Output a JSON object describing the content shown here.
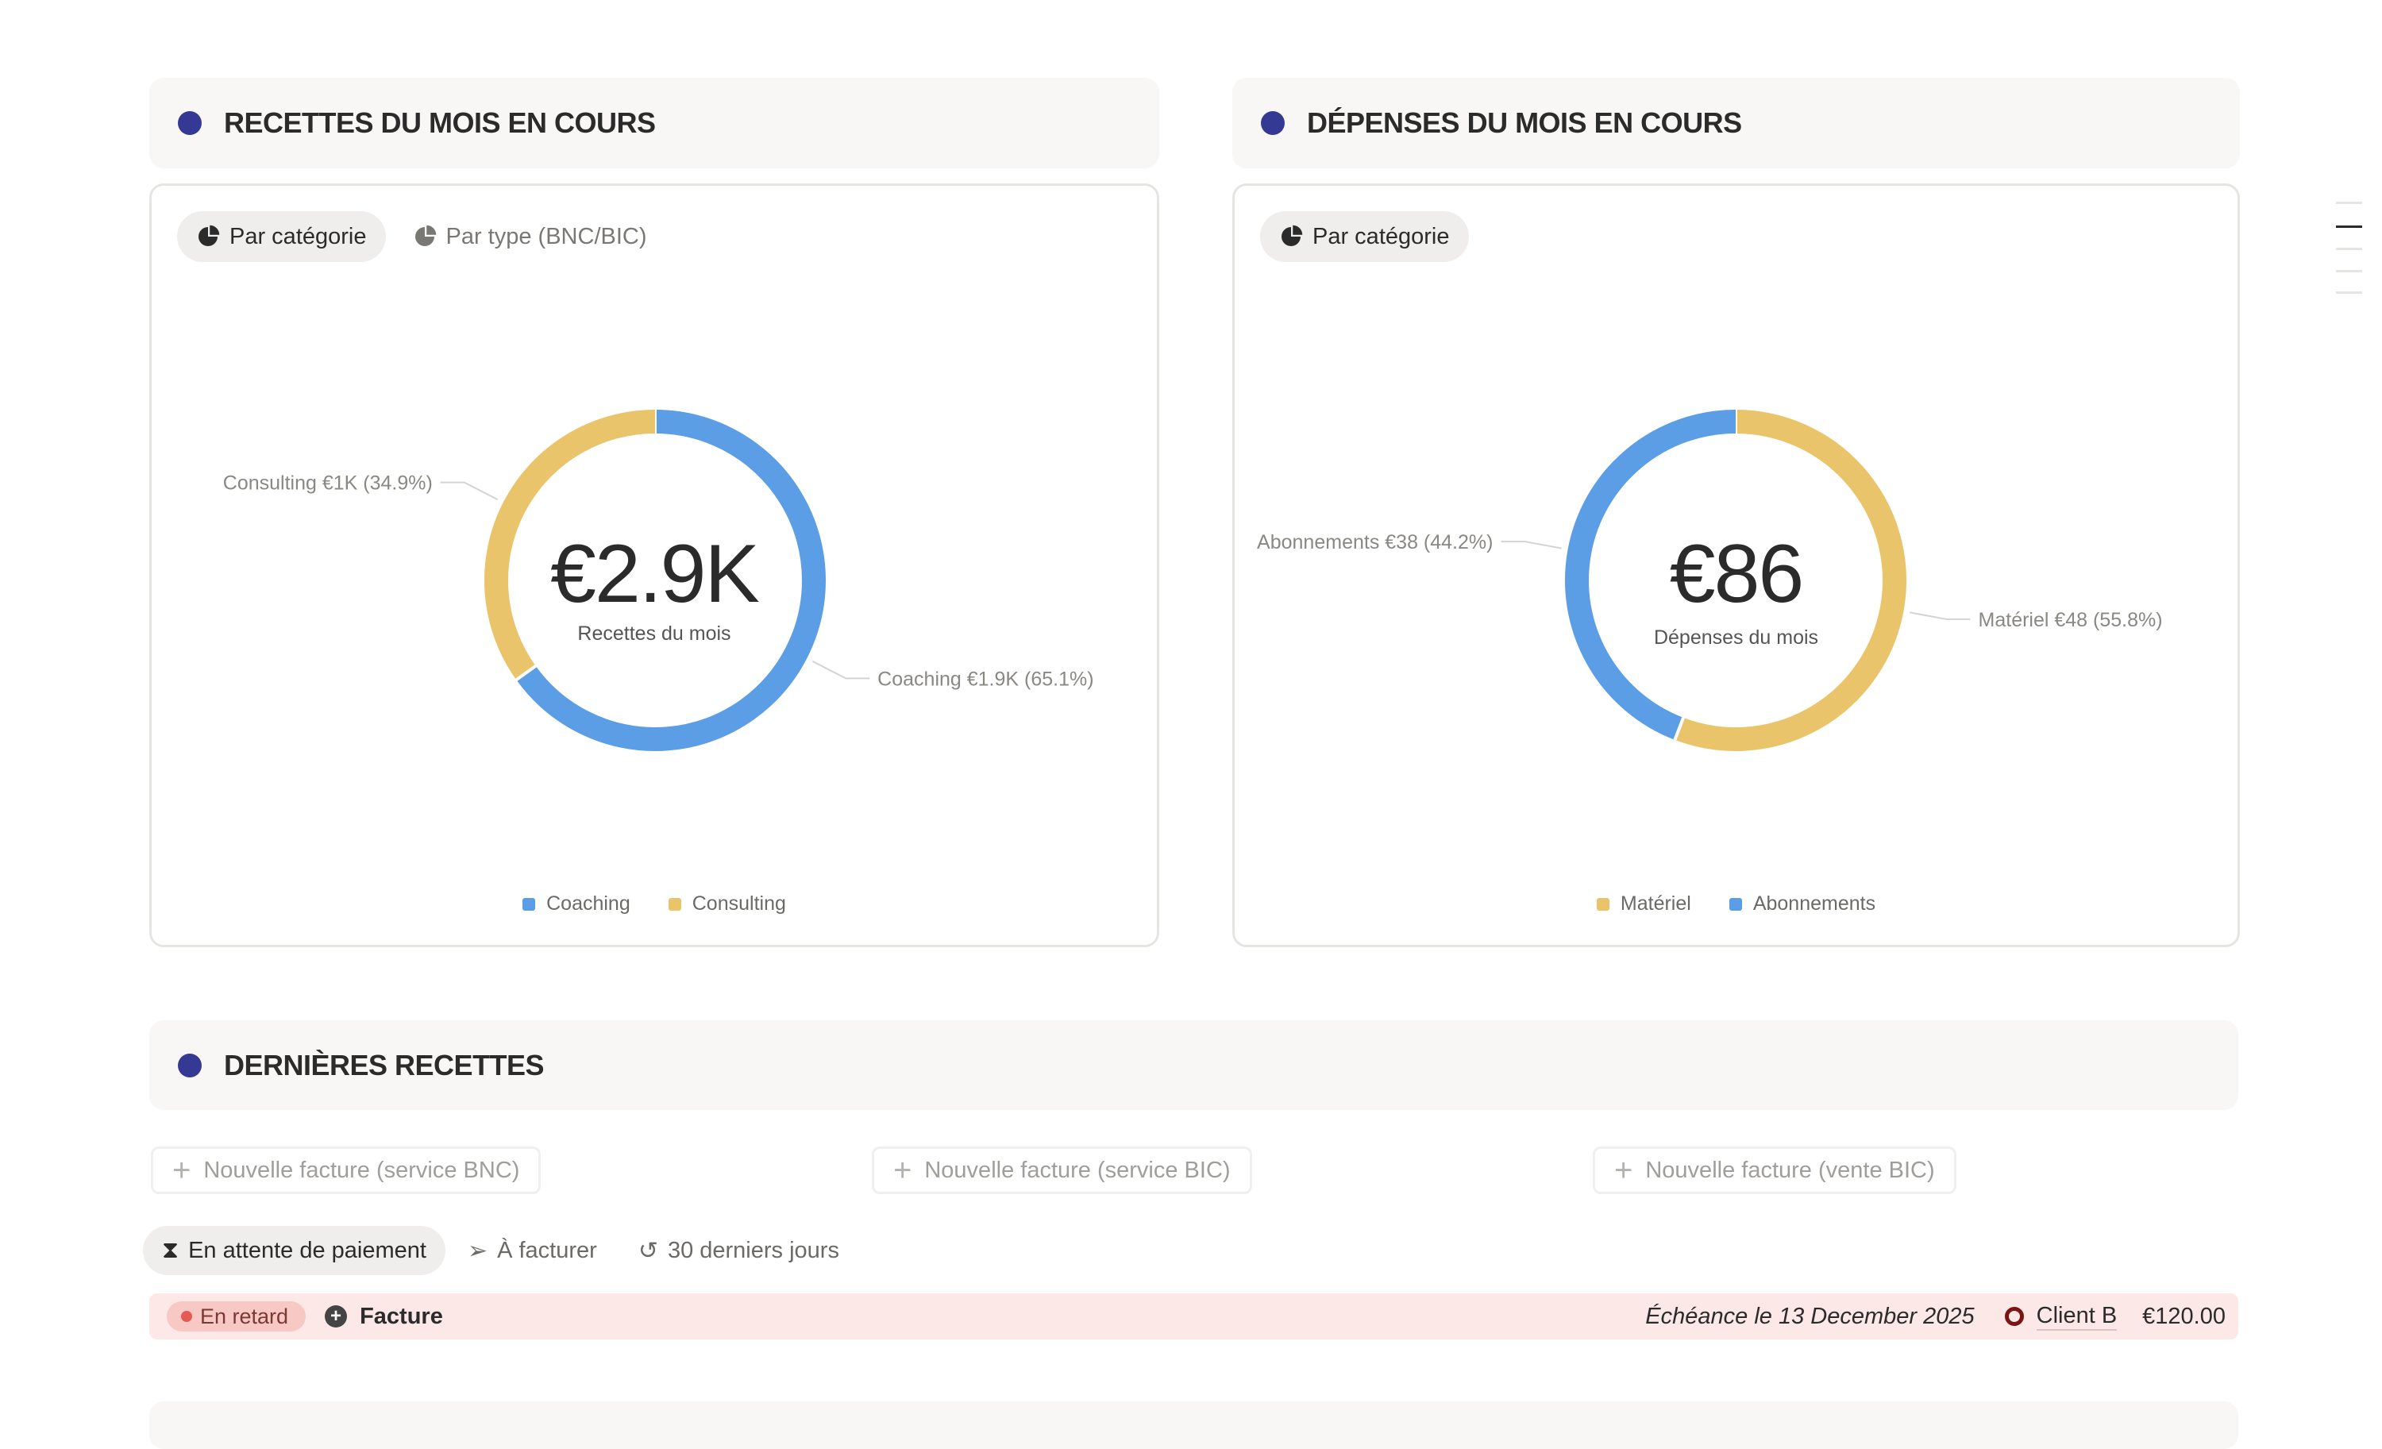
{
  "recettes": {
    "title": "RECETTES DU MOIS EN COURS",
    "tabs": [
      {
        "label": "Par catégorie",
        "icon": "pie-chart-icon",
        "active": true
      },
      {
        "label": "Par type (BNC/BIC)",
        "icon": "pie-chart-icon",
        "active": false
      }
    ],
    "total": "€2.9K",
    "subtitle": "Recettes du mois",
    "chart_data": {
      "type": "pie",
      "donut": true,
      "categories": [
        "Coaching",
        "Consulting"
      ],
      "values_label": [
        "€1.9K",
        "€1K"
      ],
      "percent": [
        65.1,
        34.9
      ],
      "colors": [
        "#5b9ee6",
        "#e9c46a"
      ],
      "labels": [
        "Coaching  €1.9K (65.1%)",
        "Consulting  €1K (34.9%)"
      ],
      "legend": [
        "Coaching",
        "Consulting"
      ],
      "legend_placement": "bottom"
    }
  },
  "depenses": {
    "title": "DÉPENSES DU MOIS EN COURS",
    "tabs": [
      {
        "label": "Par catégorie",
        "icon": "pie-chart-icon",
        "active": true
      }
    ],
    "total": "€86",
    "subtitle": "Dépenses du mois",
    "chart_data": {
      "type": "pie",
      "donut": true,
      "categories": [
        "Matériel",
        "Abonnements"
      ],
      "values_label": [
        "€48",
        "€38"
      ],
      "percent": [
        55.8,
        44.2
      ],
      "colors": [
        "#e9c46a",
        "#5b9ee6"
      ],
      "labels": [
        "Matériel  €48 (55.8%)",
        "Abonnements  €38 (44.2%)"
      ],
      "legend": [
        "Matériel",
        "Abonnements"
      ],
      "legend_placement": "bottom"
    }
  },
  "dernieres": {
    "title": "DERNIÈRES RECETTES",
    "buttons": [
      "Nouvelle facture (service BNC)",
      "Nouvelle facture (service BIC)",
      "Nouvelle facture (vente BIC)"
    ],
    "filters": [
      {
        "label": "En attente de paiement",
        "icon": "hourglass-icon",
        "active": true
      },
      {
        "label": "À facturer",
        "icon": "send-icon",
        "active": false
      },
      {
        "label": "30 derniers jours",
        "icon": "history-icon",
        "active": false
      }
    ],
    "rows": [
      {
        "status": "En retard",
        "name": "Facture",
        "due": "Échéance le 13 December 2025",
        "client": "Client B",
        "amount": "€120.00"
      }
    ]
  },
  "colors": {
    "accent": "#343a94",
    "blue": "#5b9ee6",
    "yellow": "#e9c46a",
    "overdue_bg": "#fce8e7"
  }
}
